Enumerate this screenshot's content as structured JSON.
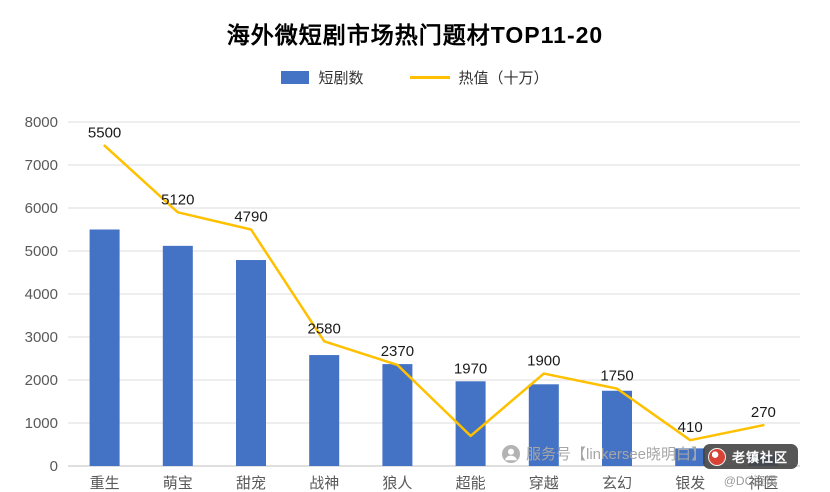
{
  "title": "海外微短剧市场热门题材TOP11-20",
  "legend": {
    "bar_label": "短剧数",
    "line_label": "热值（十万）"
  },
  "colors": {
    "bar": "#4472C4",
    "line": "#FFC000",
    "axis_text": "#595959",
    "grid": "#DCDCDC",
    "axis_line": "#BFBFBF",
    "value_label": "#1a1a1a"
  },
  "watermarks": {
    "center_text": "服务号【linkersee晓明白】",
    "badge_text": "老镇社区",
    "badge_sub": "@DC资讯"
  },
  "chart_data": {
    "type": "bar",
    "title": "海外微短剧市场热门题材TOP11-20",
    "categories": [
      "重生",
      "萌宝",
      "甜宠",
      "战神",
      "狼人",
      "超能",
      "穿越",
      "玄幻",
      "银发",
      "神医"
    ],
    "series": [
      {
        "name": "短剧数",
        "type": "bar",
        "values": [
          5500,
          5120,
          4790,
          2580,
          2370,
          1970,
          1900,
          1750,
          410,
          270
        ]
      },
      {
        "name": "热值（十万）",
        "type": "line",
        "values": [
          7450,
          5900,
          5500,
          2900,
          2350,
          700,
          2150,
          1800,
          600,
          950
        ]
      }
    ],
    "xlabel": "",
    "ylabel": "",
    "ylim": [
      0,
      8000
    ],
    "ytick_step": 1000,
    "grid": true,
    "legend_position": "top",
    "bar_value_labels": true
  }
}
